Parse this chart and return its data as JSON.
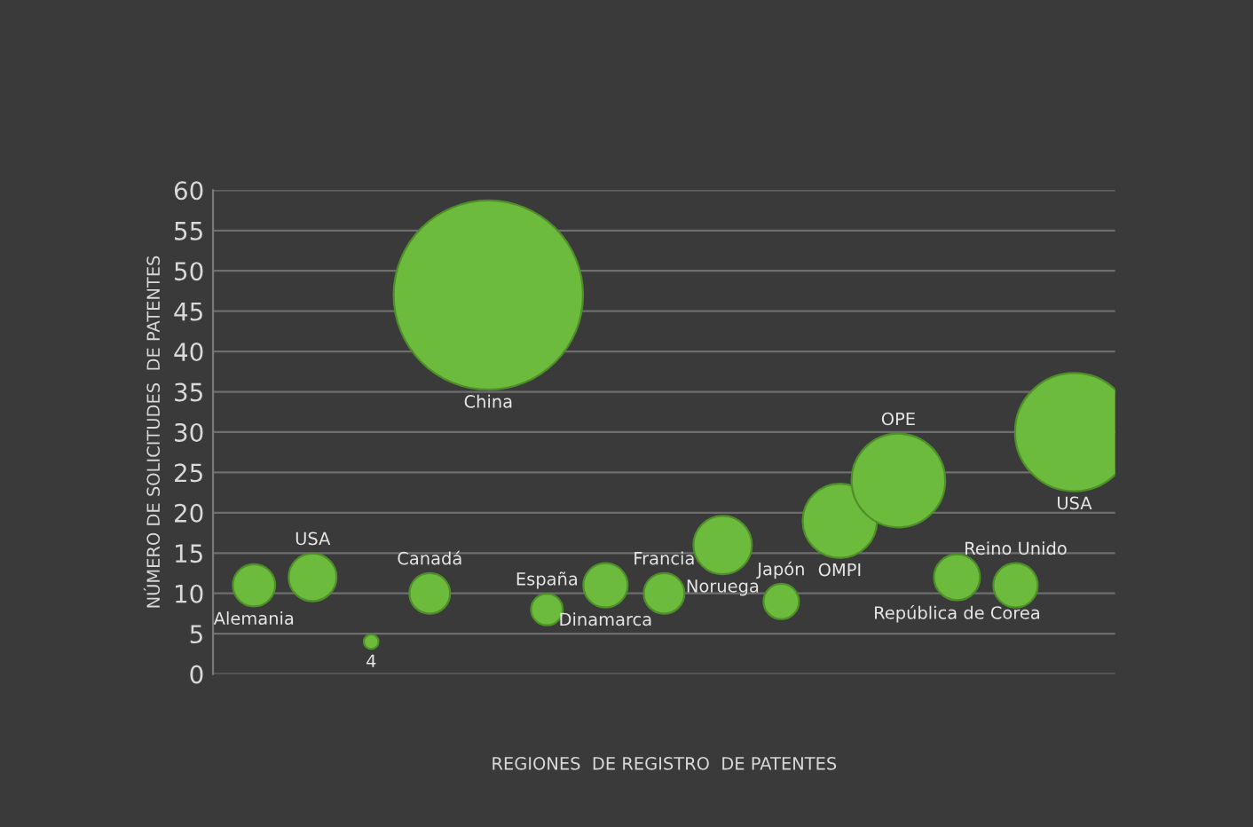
{
  "chart_data": {
    "type": "bubble",
    "ylabel": "NÚMERO DE SOLICITUDES  DE PATENTES",
    "xlabel": "REGIONES  DE REGISTRO  DE PATENTES",
    "categories": [
      null,
      null,
      null,
      null,
      null,
      null,
      null,
      null,
      null,
      null,
      null,
      null,
      null,
      null,
      null
    ],
    "values": [
      11,
      12,
      4,
      10,
      47,
      8,
      11,
      10,
      16,
      9,
      19,
      24,
      12,
      11,
      30
    ],
    "sizes": [
      0.05,
      0.064,
      0.006,
      0.046,
      1,
      0.028,
      0.055,
      0.046,
      0.095,
      0.035,
      0.154,
      0.245,
      0.059,
      0.055,
      0.39
    ],
    "value_labels": [
      "Alemania",
      "USA",
      "4",
      "Canadá",
      "China",
      "España",
      "Dinamarca",
      "Francia",
      "Noruega",
      "Japón",
      "OMPI",
      "OPE",
      "República de Corea",
      "Reino Unido",
      "USA"
    ],
    "color": "#6dbb3c",
    "relative": false,
    "ylim": [
      0,
      60
    ],
    "yticks": [
      0,
      5,
      10,
      15,
      20,
      25,
      30,
      35,
      40,
      45,
      50,
      55,
      60
    ],
    "grid": "y",
    "legend": false
  }
}
